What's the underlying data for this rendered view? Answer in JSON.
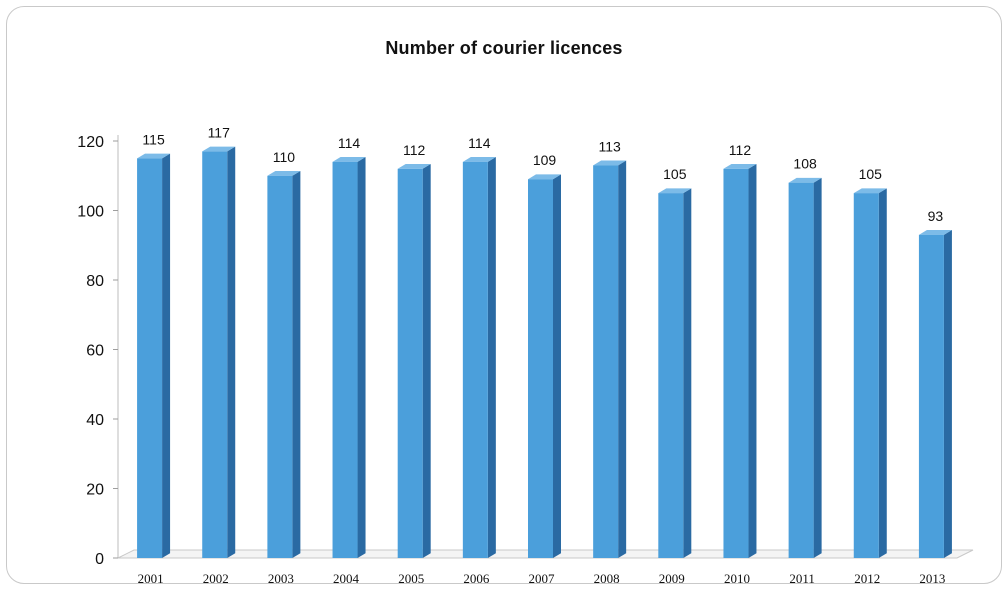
{
  "chart_data": {
    "type": "bar",
    "title": "Number of courier licences",
    "categories": [
      "2001",
      "2002",
      "2003",
      "2004",
      "2005",
      "2006",
      "2007",
      "2008",
      "2009",
      "2010",
      "2011",
      "2012",
      "2013"
    ],
    "values": [
      115,
      117,
      110,
      114,
      112,
      114,
      109,
      113,
      105,
      112,
      108,
      105,
      93
    ],
    "xlabel": "",
    "ylabel": "",
    "ylim": [
      0,
      120
    ],
    "yticks": [
      0,
      20,
      40,
      60,
      80,
      100,
      120
    ],
    "grid": false,
    "legend": "none",
    "style": "3d-column",
    "colors": {
      "bar_front": "#4b9fdb",
      "bar_side": "#2a6aa3",
      "bar_top": "#7cbbe8",
      "floor": "#c8c8c8"
    }
  }
}
